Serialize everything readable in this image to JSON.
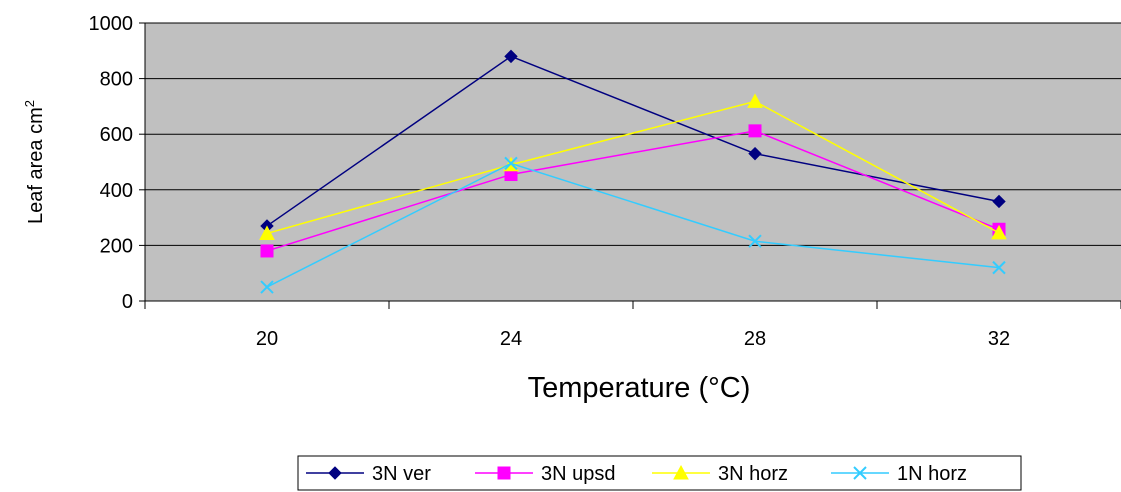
{
  "chart_data": {
    "type": "line",
    "title": "",
    "xlabel": "Temperature (°C)",
    "ylabel": "Leaf area cm",
    "ylabel_superscript": "2",
    "categories": [
      "20",
      "24",
      "28",
      "32"
    ],
    "ylim": [
      0,
      1000
    ],
    "yticks": [
      "0",
      "200",
      "400",
      "600",
      "800",
      "1000"
    ],
    "grid": "horizontal",
    "plot_background": "#c0c0c0",
    "legend_position": "bottom",
    "series": [
      {
        "name": "3N ver",
        "values": [
          270,
          880,
          530,
          358
        ],
        "color": "#000080",
        "marker": "diamond"
      },
      {
        "name": "3N upsd",
        "values": [
          180,
          455,
          612,
          258
        ],
        "color": "#ff00ff",
        "marker": "square"
      },
      {
        "name": "3N horz",
        "values": [
          243,
          490,
          718,
          245
        ],
        "color": "#ffff00",
        "marker": "triangle"
      },
      {
        "name": "1N horz",
        "values": [
          50,
          495,
          215,
          120
        ],
        "color": "#33ccff",
        "marker": "x"
      }
    ]
  }
}
